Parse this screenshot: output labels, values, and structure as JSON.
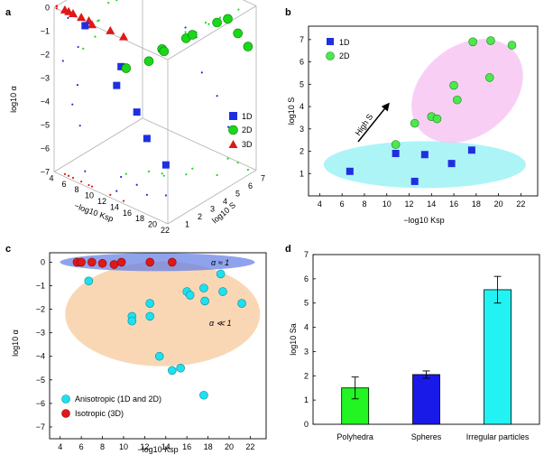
{
  "panels": {
    "a": {
      "letter": "a",
      "ylabel": "log10 α",
      "xlabel": "−log10 Ksp",
      "zlabel": "log10 S",
      "z_ticks": [
        "0",
        "−1",
        "−2",
        "−3",
        "−4",
        "−5",
        "−6",
        "−7"
      ],
      "x_ticks": [
        "4",
        "6",
        "8",
        "10",
        "12",
        "14",
        "16",
        "18",
        "20",
        "22"
      ],
      "s_ticks": [
        "1",
        "2",
        "3",
        "4",
        "5",
        "6",
        "7"
      ],
      "legend": [
        "1D",
        "2D",
        "3D"
      ]
    },
    "b": {
      "letter": "b",
      "ylabel": "log10 S",
      "xlabel": "−log10 Ksp",
      "annotation": "High S",
      "legend": [
        "1D",
        "2D"
      ]
    },
    "c": {
      "letter": "c",
      "ylabel": "log10 α",
      "xlabel": "−log10 Ksp",
      "annotation_top": "α ≈ 1",
      "annotation_mid": "α ≪ 1",
      "legend": [
        "Anisotropic (1D and 2D)",
        "Isotropic (3D)"
      ]
    },
    "d": {
      "letter": "d",
      "ylabel": "log10 Sa"
    }
  },
  "chart_data": [
    {
      "type": "scatter",
      "panel": "a",
      "xlabel": "−log10 Ksp",
      "ylabel": "log10 α",
      "zlabel": "log10 S",
      "xlim": [
        4,
        22
      ],
      "ylim": [
        -7,
        0
      ],
      "zlim": [
        0,
        7
      ],
      "series": [
        {
          "name": "1D",
          "color": "#1f2fe0",
          "points": [
            {
              "x": 6.7,
              "z": 1.1,
              "y": -0.8
            },
            {
              "x": 10.8,
              "z": 1.9,
              "y": -2.3
            },
            {
              "x": 12.5,
              "z": 0.7,
              "y": -2.5
            },
            {
              "x": 13.4,
              "z": 1.85,
              "y": -3.9
            },
            {
              "x": 15.8,
              "z": 1.45,
              "y": -4.6
            },
            {
              "x": 17.6,
              "z": 2.05,
              "y": -5.7
            }
          ]
        },
        {
          "name": "2D",
          "color": "#18d818",
          "points": [
            {
              "x": 10.8,
              "z": 2.3,
              "y": -2.5
            },
            {
              "x": 12.5,
              "z": 3.25,
              "y": -2.3
            },
            {
              "x": 14.0,
              "z": 3.55,
              "y": -1.7
            },
            {
              "x": 14.5,
              "z": 3.45,
              "y": -1.7
            },
            {
              "x": 16.3,
              "z": 4.3,
              "y": -1.2
            },
            {
              "x": 16.0,
              "z": 4.95,
              "y": -1.3
            },
            {
              "x": 17.7,
              "z": 6.9,
              "y": -1.05
            },
            {
              "x": 19.2,
              "z": 5.3,
              "y": -0.5
            },
            {
              "x": 19.2,
              "z": 6.95,
              "y": -1.5
            },
            {
              "x": 21.2,
              "z": 6.75,
              "y": -1.75
            }
          ]
        },
        {
          "name": "3D",
          "color": "#e01818",
          "points": [
            {
              "x": 5.3,
              "z": 0.2,
              "y": 0
            },
            {
              "x": 5.9,
              "z": 0.2,
              "y": 0
            },
            {
              "x": 6.6,
              "z": 0.2,
              "y": 0
            },
            {
              "x": 7.9,
              "z": 0.2,
              "y": 0
            },
            {
              "x": 9.1,
              "z": 0.2,
              "y": 0
            },
            {
              "x": 9.6,
              "z": 0.2,
              "y": -0.1
            },
            {
              "x": 12.5,
              "z": 0.2,
              "y": 0
            },
            {
              "x": 14.6,
              "z": 0.2,
              "y": 0
            }
          ]
        }
      ]
    },
    {
      "type": "scatter",
      "panel": "b",
      "xlabel": "−log10 Ksp",
      "ylabel": "log10 S",
      "xlim": [
        3,
        23.5
      ],
      "ylim": [
        0,
        7.6
      ],
      "x_ticks": [
        4,
        6,
        8,
        10,
        12,
        14,
        16,
        18,
        20,
        22
      ],
      "y_ticks": [
        1,
        2,
        3,
        4,
        5,
        6,
        7
      ],
      "series": [
        {
          "name": "1D",
          "color": "#1f2fe0",
          "points": [
            [
              6.7,
              1.1
            ],
            [
              10.8,
              1.9
            ],
            [
              12.5,
              0.65
            ],
            [
              13.4,
              1.85
            ],
            [
              15.8,
              1.45
            ],
            [
              17.6,
              2.05
            ]
          ]
        },
        {
          "name": "2D",
          "color": "#18d818",
          "points": [
            [
              10.8,
              2.3
            ],
            [
              12.5,
              3.25
            ],
            [
              14.0,
              3.55
            ],
            [
              14.5,
              3.45
            ],
            [
              16.3,
              4.3
            ],
            [
              16.0,
              4.95
            ],
            [
              17.7,
              6.9
            ],
            [
              19.2,
              5.3
            ],
            [
              19.3,
              6.95
            ],
            [
              21.2,
              6.75
            ]
          ]
        }
      ]
    },
    {
      "type": "scatter",
      "panel": "c",
      "xlabel": "−log10 Ksp",
      "ylabel": "log10 α",
      "xlim": [
        3,
        23.5
      ],
      "ylim": [
        -7.5,
        0.4
      ],
      "x_ticks": [
        4,
        6,
        8,
        10,
        12,
        14,
        16,
        18,
        20,
        22
      ],
      "y_ticks": [
        0,
        -1,
        -2,
        -3,
        -4,
        -5,
        -6,
        -7
      ],
      "series": [
        {
          "name": "Anisotropic (1D and 2D)",
          "color": "#1ee0f0",
          "points": [
            [
              6.7,
              -0.8
            ],
            [
              10.8,
              -2.3
            ],
            [
              10.8,
              -2.5
            ],
            [
              12.5,
              -1.75
            ],
            [
              12.5,
              -2.3
            ],
            [
              13.4,
              -4.0
            ],
            [
              14.6,
              -4.6
            ],
            [
              15.4,
              -4.5
            ],
            [
              16.0,
              -1.25
            ],
            [
              16.3,
              -1.4
            ],
            [
              17.6,
              -1.1
            ],
            [
              17.6,
              -5.65
            ],
            [
              17.7,
              -1.65
            ],
            [
              19.2,
              -0.5
            ],
            [
              19.4,
              -1.25
            ],
            [
              21.2,
              -1.75
            ]
          ]
        },
        {
          "name": "Isotropic (3D)",
          "color": "#e01818",
          "points": [
            [
              5.6,
              0
            ],
            [
              6.0,
              0
            ],
            [
              7.0,
              0
            ],
            [
              8.0,
              -0.05
            ],
            [
              9.1,
              -0.1
            ],
            [
              9.8,
              0
            ],
            [
              12.5,
              0
            ],
            [
              14.6,
              0
            ]
          ]
        }
      ]
    },
    {
      "type": "bar",
      "panel": "d",
      "ylabel": "log10 Sa",
      "categories": [
        "Polyhedra",
        "Spheres",
        "Irregular particles"
      ],
      "values": [
        1.5,
        2.05,
        5.55
      ],
      "errors": [
        0.45,
        0.15,
        0.55
      ],
      "colors": [
        "#22f522",
        "#1a1ae8",
        "#22f2f2"
      ],
      "ylim": [
        0,
        7
      ],
      "y_ticks": [
        0,
        1,
        2,
        3,
        4,
        5,
        6,
        7
      ]
    }
  ]
}
